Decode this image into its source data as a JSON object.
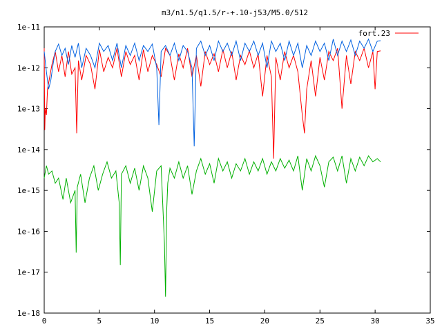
{
  "chart_data": {
    "type": "line",
    "title": "m3/n1.5/q1.5/r-+.10-j53/M5.0/512",
    "xlabel": "",
    "ylabel": "",
    "xlim": [
      0,
      35
    ],
    "ylim": [
      1e-18,
      1e-11
    ],
    "y_scale": "log",
    "grid": false,
    "legend_position": "top-right",
    "x_ticks": [
      0,
      5,
      10,
      15,
      20,
      25,
      30,
      35
    ],
    "x_tick_labels": [
      "0",
      "5",
      "10",
      "15",
      "20",
      "25",
      "30",
      "35"
    ],
    "y_ticks": [
      1e-18,
      1e-17,
      1e-16,
      1e-15,
      1e-14,
      1e-13,
      1e-12,
      1e-11
    ],
    "y_tick_labels": [
      "1e-18",
      "1e-17",
      "1e-16",
      "1e-15",
      "1e-14",
      "1e-13",
      "1e-12",
      "1e-11"
    ],
    "series": [
      {
        "name": "fort.23",
        "color": "#ff0000",
        "x": [
          0,
          0.05,
          0.1,
          0.2,
          0.3,
          0.5,
          0.7,
          1.0,
          1.3,
          1.6,
          1.9,
          2.2,
          2.5,
          2.8,
          2.95,
          3.1,
          3.4,
          3.8,
          4.2,
          4.6,
          5.0,
          5.4,
          5.8,
          6.2,
          6.6,
          7.0,
          7.4,
          7.8,
          8.2,
          8.6,
          9.0,
          9.4,
          9.8,
          10.2,
          10.6,
          11.0,
          11.4,
          11.8,
          12.2,
          12.6,
          13.0,
          13.4,
          13.8,
          14.2,
          14.6,
          15.0,
          15.4,
          15.8,
          16.2,
          16.6,
          17.0,
          17.4,
          17.8,
          18.2,
          18.6,
          19.0,
          19.4,
          19.8,
          20.2,
          20.6,
          20.8,
          21.0,
          21.4,
          21.8,
          22.2,
          22.6,
          23.0,
          23.4,
          23.6,
          23.8,
          24.2,
          24.6,
          25.0,
          25.4,
          25.8,
          26.2,
          26.6,
          27.0,
          27.4,
          27.8,
          28.2,
          28.6,
          29.0,
          29.4,
          29.8,
          30.0,
          30.2,
          30.5
        ],
        "y": [
          3e-12,
          3e-14,
          1e-13,
          7e-14,
          3e-13,
          6e-13,
          1.2e-12,
          2.5e-12,
          8e-13,
          2e-12,
          6e-13,
          2.5e-12,
          7e-13,
          1e-12,
          2.5e-14,
          1.5e-12,
          5e-13,
          2e-12,
          1.2e-12,
          3e-13,
          2.8e-12,
          8e-13,
          1.8e-12,
          1e-12,
          3e-12,
          6e-13,
          2.5e-12,
          1.2e-12,
          2e-12,
          5e-13,
          2.8e-12,
          8e-13,
          2e-12,
          1.2e-12,
          6e-13,
          3e-12,
          2e-12,
          5e-13,
          2.2e-12,
          1e-12,
          3e-12,
          6e-13,
          2e-12,
          3.5e-13,
          2.5e-12,
          1.2e-12,
          2.2e-12,
          8e-13,
          2.8e-12,
          1e-12,
          2.5e-12,
          5e-13,
          2e-12,
          1.2e-12,
          2.6e-12,
          1e-12,
          2.2e-12,
          2e-13,
          2e-12,
          6e-13,
          6e-15,
          1.8e-12,
          5e-13,
          2.5e-12,
          1e-12,
          2e-12,
          8e-13,
          7e-14,
          2.5e-14,
          3e-13,
          1.5e-12,
          2e-13,
          1.8e-12,
          5e-13,
          2.5e-12,
          1.5e-12,
          3e-12,
          1e-13,
          2e-12,
          4e-13,
          2.5e-12,
          1.5e-12,
          3e-12,
          1e-12,
          2.5e-12,
          3e-13,
          2.5e-12,
          2.6e-12
        ]
      },
      {
        "name": "",
        "color": "#0060e0",
        "x": [
          0,
          0.2,
          0.4,
          0.6,
          0.8,
          1.0,
          1.3,
          1.6,
          1.9,
          2.2,
          2.5,
          2.8,
          3.1,
          3.4,
          3.8,
          4.2,
          4.6,
          5.0,
          5.4,
          5.8,
          6.2,
          6.6,
          7.0,
          7.4,
          7.8,
          8.2,
          8.6,
          9.0,
          9.4,
          9.8,
          10.2,
          10.4,
          10.6,
          11.0,
          11.4,
          11.8,
          12.2,
          12.6,
          13.0,
          13.4,
          13.6,
          13.8,
          14.2,
          14.6,
          15.0,
          15.4,
          15.8,
          16.2,
          16.6,
          17.0,
          17.4,
          17.8,
          18.2,
          18.6,
          19.0,
          19.4,
          19.8,
          20.2,
          20.6,
          21.0,
          21.4,
          21.8,
          22.2,
          22.6,
          23.0,
          23.4,
          23.8,
          24.2,
          24.6,
          25.0,
          25.4,
          25.8,
          26.2,
          26.6,
          27.0,
          27.4,
          27.8,
          28.2,
          28.6,
          29.0,
          29.4,
          29.8,
          30.2,
          30.5
        ],
        "y": [
          2.5e-12,
          8e-13,
          3e-13,
          5e-13,
          1.2e-12,
          2.5e-12,
          3.8e-12,
          2e-12,
          3e-12,
          1.2e-12,
          3.5e-12,
          1.8e-12,
          4e-12,
          1e-12,
          3e-12,
          2e-12,
          1e-12,
          4e-12,
          2.5e-12,
          3.5e-12,
          1.5e-12,
          4e-12,
          1e-12,
          3.5e-12,
          2e-12,
          4e-12,
          1.5e-12,
          3.5e-12,
          2.5e-12,
          3.8e-12,
          1e-12,
          4e-14,
          2.5e-12,
          3.5e-12,
          2e-12,
          4e-12,
          1.5e-12,
          3.5e-12,
          2.5e-12,
          1e-12,
          1.2e-14,
          3e-12,
          4.5e-12,
          2e-12,
          3.5e-12,
          1.5e-12,
          4.5e-12,
          2.5e-12,
          4e-12,
          2e-12,
          4.5e-12,
          1.5e-12,
          4e-12,
          2.5e-12,
          4.5e-12,
          2e-12,
          4e-12,
          1e-12,
          4.5e-12,
          2.5e-12,
          4e-12,
          1.5e-12,
          4.5e-12,
          2e-12,
          4e-12,
          1e-12,
          3.5e-12,
          2e-12,
          4.5e-12,
          2.5e-12,
          4e-12,
          1.5e-12,
          5e-12,
          2e-12,
          4.5e-12,
          2.5e-12,
          4.8e-12,
          2e-12,
          4.5e-12,
          3e-12,
          5e-12,
          2.5e-12,
          4.5e-12,
          4.6e-12
        ]
      },
      {
        "name": "",
        "color": "#00b000",
        "x": [
          0,
          0.2,
          0.4,
          0.7,
          1.0,
          1.3,
          1.7,
          2.0,
          2.4,
          2.8,
          2.9,
          3.0,
          3.3,
          3.7,
          4.1,
          4.5,
          4.9,
          5.3,
          5.7,
          6.1,
          6.5,
          6.8,
          6.9,
          7.0,
          7.4,
          7.8,
          8.2,
          8.6,
          9.0,
          9.4,
          9.8,
          10.2,
          10.6,
          10.9,
          11.0,
          11.1,
          11.2,
          11.4,
          11.8,
          12.2,
          12.6,
          13.0,
          13.4,
          13.8,
          14.2,
          14.6,
          15.0,
          15.4,
          15.8,
          16.2,
          16.6,
          17.0,
          17.4,
          17.8,
          18.2,
          18.6,
          19.0,
          19.4,
          19.8,
          20.2,
          20.6,
          21.0,
          21.4,
          21.8,
          22.2,
          22.6,
          23.0,
          23.4,
          23.8,
          24.2,
          24.6,
          25.0,
          25.4,
          25.8,
          26.2,
          26.6,
          27.0,
          27.4,
          27.8,
          28.2,
          28.6,
          29.0,
          29.4,
          29.8,
          30.2,
          30.5
        ],
        "y": [
          2e-15,
          4e-15,
          2.5e-15,
          3e-15,
          1.5e-15,
          2e-15,
          6e-16,
          2e-15,
          5e-16,
          1e-15,
          3e-17,
          1.2e-15,
          2.5e-15,
          5e-16,
          2e-15,
          4e-15,
          1e-15,
          2.5e-15,
          5e-15,
          2e-15,
          3e-15,
          5e-16,
          1.5e-17,
          2.5e-15,
          4e-15,
          1.5e-15,
          3.5e-15,
          1e-15,
          4e-15,
          2e-15,
          3e-16,
          3e-15,
          4e-15,
          5e-17,
          2.5e-18,
          3e-16,
          1.5e-15,
          3.5e-15,
          2e-15,
          5e-15,
          2e-15,
          4e-15,
          8e-16,
          3e-15,
          6e-15,
          2.5e-15,
          4.5e-15,
          1.5e-15,
          6e-15,
          3e-15,
          5e-15,
          2e-15,
          4.5e-15,
          3e-15,
          6e-15,
          2.5e-15,
          5e-15,
          3e-15,
          6e-15,
          2.5e-15,
          5e-15,
          3e-15,
          6e-15,
          3.5e-15,
          5.5e-15,
          3e-15,
          7e-15,
          1e-15,
          6e-15,
          3e-15,
          7e-15,
          4e-15,
          1.2e-15,
          5e-15,
          6.5e-15,
          3e-15,
          7e-15,
          1.5e-15,
          6e-15,
          3e-15,
          6.5e-15,
          4e-15,
          7e-15,
          5e-15,
          6e-15,
          5e-15
        ]
      }
    ]
  }
}
